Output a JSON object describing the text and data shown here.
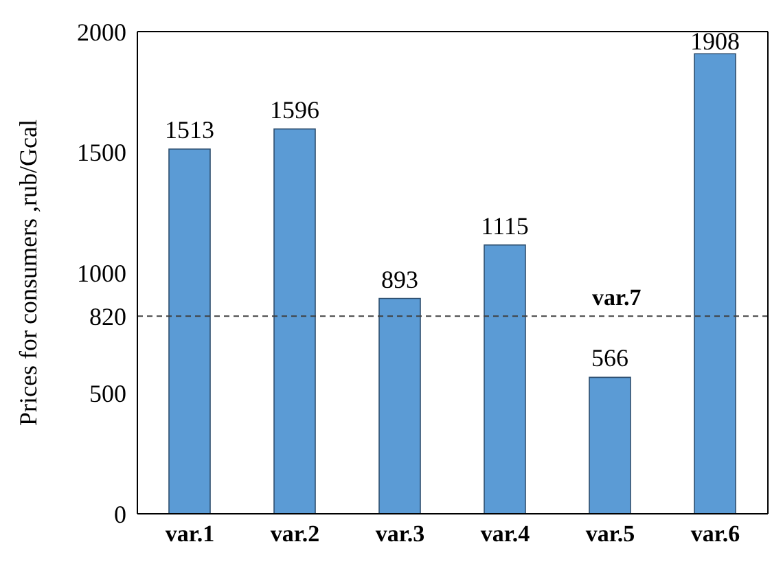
{
  "chart_data": {
    "type": "bar",
    "ylabel": "Prices for consumers ,rub/Gcal",
    "categories": [
      "var.1",
      "var.2",
      "var.3",
      "var.4",
      "var.5",
      "var.6"
    ],
    "values": [
      1513,
      1596,
      893,
      1115,
      566,
      1908
    ],
    "color": "#5b9bd5",
    "ylim": [
      0,
      2000
    ],
    "yticks": [
      0,
      500,
      820,
      1000,
      1500,
      2000
    ],
    "data_labels": true,
    "ref_lines": [
      {
        "axis": "y",
        "value": 820,
        "label": "var.7",
        "color": "#404040",
        "line_style": "dashed"
      }
    ]
  }
}
